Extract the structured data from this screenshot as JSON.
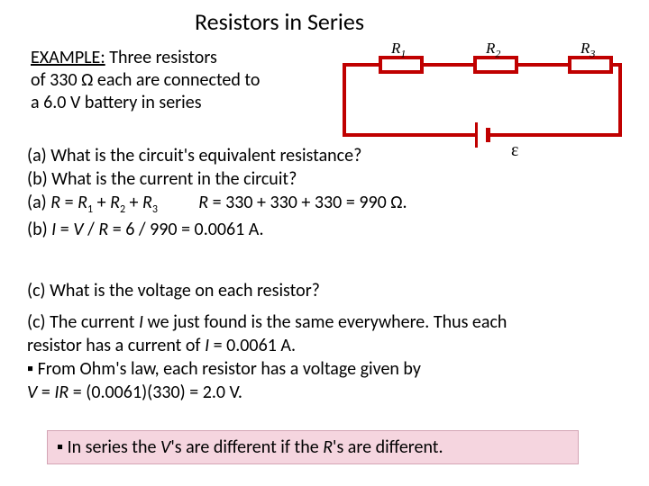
{
  "title": "Resistors in Series",
  "example": {
    "line1_prefix": "EXAMPLE:",
    "line1_rest": " Three resistors",
    "line2": "of 330 Ω each are  connected to",
    "line3": "a 6.0 V battery in series"
  },
  "circuit": {
    "r1": "R",
    "r1sub": "1",
    "r2": "R",
    "r2sub": "2",
    "r3": "R",
    "r3sub": "3",
    "epsilon": "ε",
    "wire_color": "#c00000",
    "wire_thickness": 4
  },
  "qa": {
    "qa_line1": "(a) What is the circuit's equivalent resistance?",
    "qa_line2": "(b) What is the current in the circuit?",
    "qa_line3_a": "(a) ",
    "qa_line3_b": "R",
    "qa_line3_c": " = ",
    "qa_line3_d": "R",
    "qa_line3_e": "1",
    "qa_line3_f": " + ",
    "qa_line3_g": "R",
    "qa_line3_h": "2",
    "qa_line3_i": " + ",
    "qa_line3_j": "R",
    "qa_line3_k": "3",
    "qa_line3_gap": "          ",
    "qa_line3_m": "R",
    "qa_line3_n": " = 330 + 330 + 330 = 990 Ω.",
    "qa_line4_a": "(b) ",
    "qa_line4_b": "I",
    "qa_line4_c": " = ",
    "qa_line4_d": "V",
    "qa_line4_e": " / ",
    "qa_line4_f": "R",
    "qa_line4_g": " = 6 / 990 = 0.0061 A."
  },
  "cquestion": "(c) What is the voltage on each resistor?",
  "canswer": {
    "l1a": "(c) The current ",
    "l1b": "I",
    "l1c": " we just found is the same everywhere. Thus each",
    "l2a": "resistor has a current of  ",
    "l2b": "I",
    "l2c": " = 0.0061 A.",
    "l3": "▪ From Ohm's law, each resistor has a voltage given by",
    "l4a": "V",
    "l4b": " = ",
    "l4c": "IR",
    "l4d": " = (0.0061)(330) = 2.0 V."
  },
  "highlight": {
    "a": "▪ In series the ",
    "b": "V",
    "c": "'s are different if the ",
    "d": "R",
    "e": "'s are different."
  },
  "colors": {
    "highlight_bg": "#f5d5df",
    "text": "#000000",
    "background": "#ffffff"
  },
  "fonts": {
    "title_size": 26,
    "body_size": 20
  }
}
